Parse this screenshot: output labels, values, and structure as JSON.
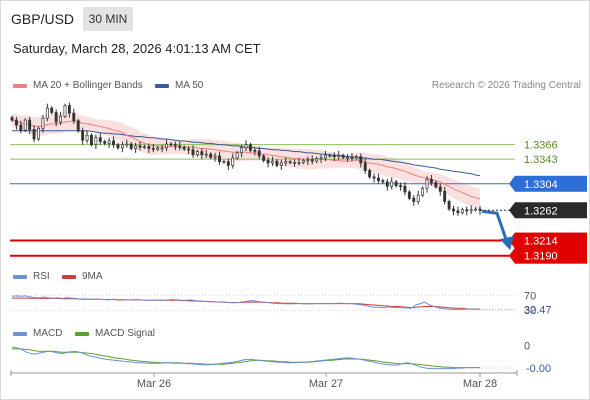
{
  "header": {
    "symbol": "GBP/USD",
    "timeframe": "30 MIN",
    "datetime": "Saturday, March 28, 2026 4:01:13 AM CET",
    "research": "Research © 2026 Trading Central"
  },
  "legend": {
    "ma20": "MA 20 + Bollinger Bands",
    "ma50": "MA 50",
    "rsi": "RSI",
    "rsi_ma": "9MA",
    "macd": "MACD",
    "macd_signal": "MACD Signal"
  },
  "colors": {
    "ma20": "#f08080",
    "ma50": "#3a5a98",
    "band_fill": "#fbe0e0",
    "candle": "#333333",
    "green_level": "#8cc05a",
    "blue_level": "#2d6fd6",
    "red_level": "#e00000",
    "current_price": "#2a2a2a",
    "arrow": "#2b6cb8",
    "rsi": "#6f8fd6",
    "rsi_ma": "#d43a3a",
    "macd": "#6f8fd6",
    "macd_signal": "#5aa02c"
  },
  "chart_data": [
    {
      "type": "candlestick",
      "x_ticks": [
        "Mar 26",
        "Mar 27",
        "Mar 28"
      ],
      "ylim": [
        1.318,
        1.344
      ],
      "levels": [
        {
          "value": 1.3366,
          "label": "1.3366",
          "kind": "resistance"
        },
        {
          "value": 1.3343,
          "label": "1.3343",
          "kind": "resistance"
        },
        {
          "value": 1.3304,
          "label": "1.3304",
          "kind": "pivot"
        },
        {
          "value": 1.3214,
          "label": "1.3214",
          "kind": "support"
        },
        {
          "value": 1.319,
          "label": "1.3190",
          "kind": "support"
        }
      ],
      "current_price": {
        "value": 1.3262,
        "label": "1.3262"
      },
      "forecast": {
        "from": 1.3262,
        "to": 1.3202,
        "direction": "down"
      },
      "close": [
        1.3405,
        1.3397,
        1.3389,
        1.3405,
        1.339,
        1.3375,
        1.3392,
        1.3408,
        1.3424,
        1.3417,
        1.3402,
        1.3411,
        1.3428,
        1.3416,
        1.3404,
        1.3388,
        1.3373,
        1.3381,
        1.3366,
        1.3377,
        1.3371,
        1.3368,
        1.3372,
        1.3366,
        1.3361,
        1.3366,
        1.3367,
        1.336,
        1.3364,
        1.3362,
        1.3363,
        1.336,
        1.3359,
        1.3361,
        1.3361,
        1.3367,
        1.3366,
        1.3364,
        1.3362,
        1.3359,
        1.3358,
        1.335,
        1.3355,
        1.335,
        1.3351,
        1.3346,
        1.3348,
        1.3339,
        1.3339,
        1.3333,
        1.3345,
        1.3353,
        1.3361,
        1.3366,
        1.3357,
        1.3356,
        1.3348,
        1.3341,
        1.3337,
        1.334,
        1.3333,
        1.3337,
        1.3339,
        1.3338,
        1.3338,
        1.3338,
        1.3341,
        1.3342,
        1.334,
        1.3344,
        1.3345,
        1.3349,
        1.3349,
        1.3347,
        1.3349,
        1.3346,
        1.3346,
        1.3345,
        1.3347,
        1.3337,
        1.3325,
        1.3315,
        1.3313,
        1.3309,
        1.3307,
        1.33,
        1.3307,
        1.3301,
        1.33,
        1.3291,
        1.3281,
        1.3276,
        1.3286,
        1.3297,
        1.3311,
        1.3306,
        1.3299,
        1.3292,
        1.3276,
        1.3264,
        1.3261,
        1.3258,
        1.3263,
        1.3261,
        1.3263,
        1.3264,
        1.3262
      ],
      "ma20": [
        1.3405,
        1.3403,
        1.34,
        1.34,
        1.3398,
        1.3395,
        1.3395,
        1.3396,
        1.3398,
        1.3399,
        1.3399,
        1.34,
        1.3402,
        1.3403,
        1.3403,
        1.3402,
        1.34,
        1.3399,
        1.3398,
        1.3396,
        1.3395,
        1.3393,
        1.3392,
        1.3389,
        1.3388,
        1.3385,
        1.3381,
        1.3378,
        1.3375,
        1.3371,
        1.3368,
        1.3366,
        1.3364,
        1.3364,
        1.3364,
        1.3363,
        1.3363,
        1.3362,
        1.3362,
        1.3362,
        1.3362,
        1.3362,
        1.3361,
        1.336,
        1.336,
        1.3359,
        1.3358,
        1.3357,
        1.3356,
        1.3355,
        1.3354,
        1.3354,
        1.3354,
        1.3354,
        1.3353,
        1.3353,
        1.3352,
        1.3351,
        1.335,
        1.3349,
        1.3348,
        1.3347,
        1.3346,
        1.3345,
        1.3344,
        1.3344,
        1.3343,
        1.3343,
        1.3342,
        1.3343,
        1.3343,
        1.3342,
        1.3342,
        1.3341,
        1.3341,
        1.334,
        1.334,
        1.334,
        1.3341,
        1.334,
        1.3339,
        1.3337,
        1.3336,
        1.3335,
        1.3333,
        1.3331,
        1.333,
        1.3328,
        1.3326,
        1.3324,
        1.3321,
        1.3318,
        1.3316,
        1.3314,
        1.3313,
        1.3311,
        1.3309,
        1.3307,
        1.3303,
        1.33,
        1.3296,
        1.3293,
        1.329,
        1.3287,
        1.3284,
        1.3282,
        1.328
      ],
      "ma50": [
        1.3388,
        1.3388,
        1.3388,
        1.3388,
        1.3388,
        1.3388,
        1.3388,
        1.3388,
        1.3388,
        1.3388,
        1.3388,
        1.3388,
        1.3388,
        1.3388,
        1.3388,
        1.3388,
        1.3388,
        1.3388,
        1.3387,
        1.3386,
        1.3385,
        1.3384,
        1.3384,
        1.3383,
        1.3383,
        1.3382,
        1.3381,
        1.338,
        1.3379,
        1.3379,
        1.3378,
        1.3377,
        1.3377,
        1.3376,
        1.3375,
        1.3375,
        1.3374,
        1.3373,
        1.3372,
        1.3372,
        1.3371,
        1.337,
        1.337,
        1.3369,
        1.3368,
        1.3368,
        1.3367,
        1.3366,
        1.3366,
        1.3365,
        1.3364,
        1.3364,
        1.3363,
        1.3362,
        1.3362,
        1.3361,
        1.336,
        1.336,
        1.3359,
        1.3358,
        1.3358,
        1.3357,
        1.3357,
        1.3356,
        1.3355,
        1.3355,
        1.3354,
        1.3353,
        1.3353,
        1.3352,
        1.3351,
        1.3351,
        1.335,
        1.3349,
        1.3349,
        1.3348,
        1.3347,
        1.3347,
        1.3346,
        1.3345,
        1.3345,
        1.3344,
        1.3343,
        1.3343,
        1.3342,
        1.3341,
        1.334,
        1.3339,
        1.3338,
        1.3337,
        1.3336,
        1.3334,
        1.3333,
        1.3332,
        1.3331,
        1.333,
        1.3329,
        1.3327,
        1.3326,
        1.3325,
        1.3324,
        1.3323,
        1.3322,
        1.3321,
        1.332,
        1.3318,
        1.3317
      ]
    },
    {
      "type": "line",
      "name": "RSI",
      "ylim": [
        0,
        100
      ],
      "tick_labels": [
        {
          "value": 70,
          "label": "70"
        },
        {
          "value": 30,
          "label": "30"
        }
      ],
      "last_label": "32.47",
      "rsi": [
        68,
        69,
        68,
        69,
        66,
        64,
        64,
        66,
        64,
        63,
        64,
        62,
        64,
        63,
        62,
        60,
        61,
        60,
        60,
        60,
        59,
        58,
        60,
        59,
        59,
        58,
        58,
        59,
        58,
        57,
        57,
        58,
        57,
        57,
        58,
        59,
        58,
        57,
        57,
        58,
        56,
        55,
        54,
        54,
        53,
        52,
        53,
        51,
        50,
        50,
        52,
        54,
        56,
        55,
        53,
        52,
        50,
        49,
        48,
        48,
        47,
        47,
        48,
        48,
        47,
        47,
        48,
        48,
        48,
        48,
        48,
        49,
        49,
        48,
        48,
        46,
        45,
        43,
        40,
        38,
        38,
        37,
        39,
        38,
        37,
        37,
        36,
        35,
        44,
        48,
        52,
        44,
        40,
        36,
        34,
        33,
        32,
        32,
        32,
        33,
        33,
        33,
        32
      ],
      "rsi_ma": [
        63,
        63,
        63,
        63,
        63,
        62,
        62,
        62,
        62,
        62,
        62,
        61,
        61,
        61,
        61,
        60,
        60,
        60,
        60,
        60,
        59,
        59,
        59,
        58,
        58,
        58,
        58,
        58,
        58,
        57,
        57,
        57,
        57,
        57,
        57,
        57,
        57,
        56,
        56,
        55,
        55,
        54,
        54,
        53,
        53,
        52,
        52,
        51,
        51,
        51,
        51,
        52,
        52,
        52,
        52,
        51,
        51,
        50,
        50,
        49,
        49,
        49,
        49,
        48,
        48,
        48,
        48,
        48,
        48,
        48,
        48,
        48,
        48,
        48,
        48,
        48,
        47,
        46,
        45,
        44,
        43,
        42,
        41,
        40,
        40,
        39,
        38,
        37,
        38,
        39,
        40,
        40,
        40,
        39,
        38,
        37,
        36,
        35,
        35,
        34,
        33,
        33,
        33
      ]
    },
    {
      "type": "line",
      "name": "MACD",
      "tick_labels": [
        {
          "value": 0,
          "label": "0"
        }
      ],
      "last_label": "-0.00",
      "macd": [
        0.003,
        0.0028,
        0.0026,
        0.002,
        0.0017,
        0.0015,
        0.0017,
        0.0019,
        0.0021,
        0.002,
        0.0018,
        0.0016,
        0.0018,
        0.002,
        0.0021,
        0.0019,
        0.0016,
        0.0012,
        0.001,
        0.0008,
        0.0006,
        0.0004,
        0.0003,
        0.0002,
        0.0001,
        0.0,
        -0.0001,
        -0.0002,
        -0.0003,
        -0.0003,
        -0.0004,
        -0.0004,
        -0.0004,
        -0.0004,
        -0.0003,
        -0.0003,
        -0.0004,
        -0.0004,
        -0.0004,
        -0.0005,
        -0.0005,
        -0.0006,
        -0.0007,
        -0.0007,
        -0.0007,
        -0.0006,
        -0.0005,
        -0.0004,
        -0.0003,
        -0.0002,
        0.0,
        0.0002,
        0.0004,
        0.0004,
        0.0003,
        0.0002,
        0.0001,
        0.0,
        -0.0001,
        -0.0002,
        -0.0002,
        -0.0003,
        -0.0003,
        -0.0003,
        -0.0002,
        -0.0002,
        -0.0001,
        0.0,
        0.0001,
        0.0002,
        0.0003,
        0.0004,
        0.0005,
        0.0006,
        0.0007,
        0.0007,
        0.0006,
        0.0005,
        0.0003,
        0.0001,
        -0.0001,
        -0.0003,
        -0.0005,
        -0.0006,
        -0.0007,
        -0.0008,
        -0.0007,
        -0.0004,
        -0.0003,
        -0.0006,
        -0.0009,
        -0.0012,
        -0.0014,
        -0.0015,
        -0.0015,
        -0.0015,
        -0.0015,
        -0.0015,
        -0.0015,
        -0.0014,
        -0.0014,
        -0.0013,
        -0.0013,
        -0.0013,
        -0.0013
      ],
      "macd_signal": [
        0.0026,
        0.0026,
        0.0026,
        0.0025,
        0.0024,
        0.0022,
        0.0021,
        0.0021,
        0.0021,
        0.0021,
        0.002,
        0.0019,
        0.0019,
        0.0019,
        0.0019,
        0.0019,
        0.0018,
        0.0017,
        0.0016,
        0.0014,
        0.0012,
        0.0011,
        0.0009,
        0.0007,
        0.0006,
        0.0005,
        0.0003,
        0.0002,
        0.0001,
        0.0,
        -0.0001,
        -0.0002,
        -0.0002,
        -0.0003,
        -0.0003,
        -0.0003,
        -0.0003,
        -0.0003,
        -0.0004,
        -0.0004,
        -0.0004,
        -0.0005,
        -0.0005,
        -0.0006,
        -0.0006,
        -0.0006,
        -0.0006,
        -0.0006,
        -0.0005,
        -0.0004,
        -0.0003,
        -0.0002,
        0.0,
        0.0001,
        0.0002,
        0.0002,
        0.0002,
        0.0001,
        0.0001,
        0.0,
        -0.0001,
        -0.0001,
        -0.0002,
        -0.0002,
        -0.0002,
        -0.0002,
        -0.0002,
        -0.0001,
        0.0,
        0.0001,
        0.0002,
        0.0002,
        0.0003,
        0.0004,
        0.0005,
        0.0005,
        0.0005,
        0.0005,
        0.0004,
        0.0003,
        0.0002,
        0.0001,
        -0.0001,
        -0.0002,
        -0.0003,
        -0.0004,
        -0.0005,
        -0.0005,
        -0.0005,
        -0.0005,
        -0.0006,
        -0.0007,
        -0.0008,
        -0.0009,
        -0.001,
        -0.0011,
        -0.0012,
        -0.0012,
        -0.0013,
        -0.0013,
        -0.0013,
        -0.0013,
        -0.0013,
        -0.0013,
        -0.0013
      ]
    }
  ]
}
